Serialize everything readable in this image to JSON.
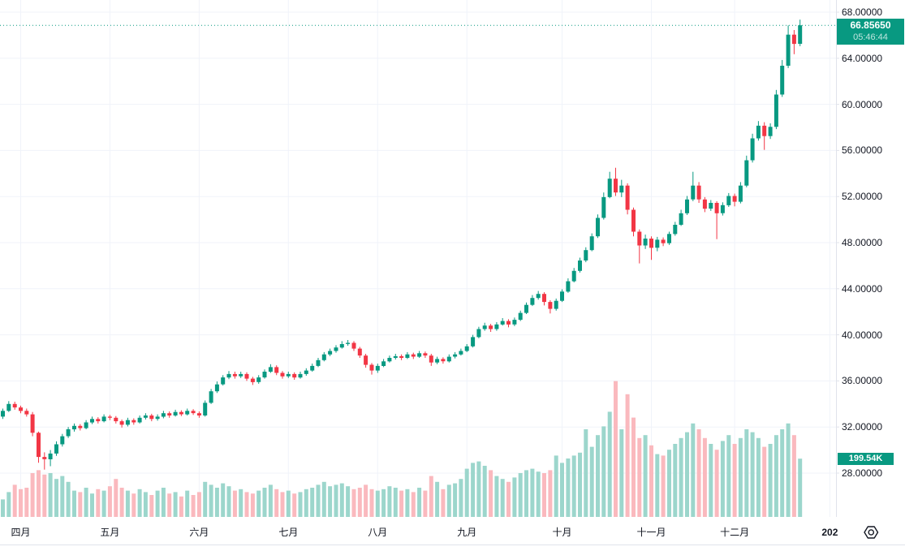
{
  "price_axis": {
    "current_price_label": "66.85650",
    "countdown": "05:46:44",
    "volume_label": "199.54K"
  },
  "colors": {
    "up": "#089981",
    "down": "#f23645",
    "volume_up": "#9cd6cc",
    "volume_down": "#fab9be",
    "grid": "#f0f3fa",
    "separator": "#e0e3eb",
    "axis_text": "#131722",
    "badge_background": "#089981",
    "badge_text": "#ffffff",
    "current_price_line": "#089981"
  },
  "chart_data": {
    "type": "candlestick",
    "current_price": 66.8565,
    "y_axis": {
      "min": 28,
      "max": 68,
      "step": 4,
      "tick_labels": [
        "68.00000",
        "64.00000",
        "60.00000",
        "56.00000",
        "52.00000",
        "48.00000",
        "44.00000",
        "40.00000",
        "36.00000",
        "32.00000",
        "28.00000"
      ]
    },
    "x_axis": {
      "tick_labels": [
        {
          "label": "四月",
          "index": 3
        },
        {
          "label": "五月",
          "index": 18
        },
        {
          "label": "六月",
          "index": 33
        },
        {
          "label": "七月",
          "index": 48
        },
        {
          "label": "八月",
          "index": 63
        },
        {
          "label": "九月",
          "index": 78
        },
        {
          "label": "十月",
          "index": 94
        },
        {
          "label": "十一月",
          "index": 109
        },
        {
          "label": "十二月",
          "index": 123
        }
      ],
      "year_tick": {
        "label": "202",
        "index": 139,
        "bold": true
      }
    },
    "volume": {
      "last_label": "199.54K",
      "last_value_k": 199.54
    },
    "candles_format": [
      "open",
      "high",
      "low",
      "close",
      "volume_k"
    ],
    "candles": [
      [
        32.9,
        33.6,
        32.7,
        33.4,
        60
      ],
      [
        33.4,
        34.25,
        33.3,
        34.0,
        85
      ],
      [
        34.0,
        34.2,
        33.5,
        33.7,
        110
      ],
      [
        33.7,
        33.85,
        33.2,
        33.4,
        95
      ],
      [
        33.4,
        33.6,
        32.9,
        33.1,
        100
      ],
      [
        33.1,
        33.3,
        31.2,
        31.5,
        150
      ],
      [
        31.5,
        31.6,
        28.9,
        29.4,
        160
      ],
      [
        29.4,
        29.8,
        28.3,
        29.2,
        145
      ],
      [
        29.2,
        30.0,
        28.6,
        29.7,
        150
      ],
      [
        29.7,
        30.75,
        29.5,
        30.5,
        130
      ],
      [
        30.5,
        31.4,
        30.3,
        31.2,
        140
      ],
      [
        31.2,
        32.0,
        31.05,
        31.8,
        120
      ],
      [
        31.8,
        32.3,
        31.6,
        32.1,
        90
      ],
      [
        32.1,
        32.25,
        31.7,
        31.9,
        85
      ],
      [
        31.9,
        32.6,
        31.8,
        32.4,
        100
      ],
      [
        32.4,
        32.9,
        32.25,
        32.7,
        80
      ],
      [
        32.7,
        32.85,
        32.3,
        32.5,
        95
      ],
      [
        32.5,
        33.1,
        32.4,
        32.9,
        90
      ],
      [
        32.9,
        33.05,
        32.6,
        32.8,
        105
      ],
      [
        32.8,
        32.95,
        32.3,
        32.5,
        130
      ],
      [
        32.5,
        32.65,
        31.95,
        32.2,
        100
      ],
      [
        32.2,
        32.8,
        32.05,
        32.6,
        90
      ],
      [
        32.6,
        32.75,
        32.2,
        32.4,
        80
      ],
      [
        32.4,
        33.0,
        32.3,
        32.8,
        95
      ],
      [
        32.8,
        33.2,
        32.65,
        33.0,
        85
      ],
      [
        33.0,
        33.15,
        32.5,
        32.7,
        75
      ],
      [
        32.7,
        33.1,
        32.55,
        32.9,
        90
      ],
      [
        32.9,
        33.4,
        32.75,
        33.2,
        100
      ],
      [
        33.2,
        33.35,
        32.8,
        33.0,
        80
      ],
      [
        33.0,
        33.5,
        32.9,
        33.3,
        85
      ],
      [
        33.3,
        33.45,
        32.95,
        33.1,
        70
      ],
      [
        33.1,
        33.6,
        33.0,
        33.4,
        90
      ],
      [
        33.4,
        33.55,
        33.05,
        33.2,
        75
      ],
      [
        33.2,
        33.35,
        32.8,
        33.0,
        85
      ],
      [
        33.0,
        34.3,
        32.9,
        34.1,
        120
      ],
      [
        34.1,
        35.3,
        34.0,
        35.1,
        110
      ],
      [
        35.1,
        35.95,
        34.95,
        35.7,
        100
      ],
      [
        35.7,
        36.5,
        35.6,
        36.3,
        115
      ],
      [
        36.3,
        36.85,
        36.15,
        36.6,
        105
      ],
      [
        36.6,
        36.8,
        36.2,
        36.4,
        90
      ],
      [
        36.4,
        36.8,
        36.25,
        36.6,
        95
      ],
      [
        36.6,
        36.75,
        36.0,
        36.2,
        85
      ],
      [
        36.2,
        36.35,
        35.65,
        35.9,
        80
      ],
      [
        35.9,
        36.5,
        35.75,
        36.3,
        90
      ],
      [
        36.3,
        37.0,
        36.2,
        36.8,
        100
      ],
      [
        36.8,
        37.45,
        36.7,
        37.2,
        110
      ],
      [
        37.2,
        37.35,
        36.5,
        36.7,
        95
      ],
      [
        36.7,
        36.85,
        36.2,
        36.4,
        85
      ],
      [
        36.4,
        36.8,
        36.25,
        36.6,
        90
      ],
      [
        36.6,
        36.75,
        36.1,
        36.3,
        80
      ],
      [
        36.3,
        36.8,
        36.2,
        36.6,
        85
      ],
      [
        36.6,
        37.1,
        36.45,
        36.9,
        95
      ],
      [
        36.9,
        37.5,
        36.8,
        37.3,
        100
      ],
      [
        37.3,
        38.0,
        37.2,
        37.8,
        110
      ],
      [
        37.8,
        38.5,
        37.7,
        38.3,
        120
      ],
      [
        38.3,
        38.8,
        38.15,
        38.6,
        105
      ],
      [
        38.6,
        39.1,
        38.45,
        38.9,
        110
      ],
      [
        38.9,
        39.45,
        38.8,
        39.2,
        115
      ],
      [
        39.2,
        39.55,
        39.05,
        39.3,
        105
      ],
      [
        39.3,
        39.45,
        38.6,
        38.8,
        95
      ],
      [
        38.8,
        38.95,
        38.0,
        38.2,
        100
      ],
      [
        38.2,
        38.35,
        37.15,
        37.4,
        110
      ],
      [
        37.4,
        37.55,
        36.55,
        36.9,
        95
      ],
      [
        36.9,
        37.5,
        36.7,
        37.3,
        90
      ],
      [
        37.3,
        37.9,
        37.2,
        37.7,
        95
      ],
      [
        37.7,
        38.2,
        37.6,
        38.0,
        105
      ],
      [
        38.0,
        38.35,
        37.85,
        38.15,
        100
      ],
      [
        38.15,
        38.3,
        37.8,
        38.0,
        90
      ],
      [
        38.0,
        38.5,
        37.9,
        38.3,
        95
      ],
      [
        38.3,
        38.45,
        37.9,
        38.1,
        85
      ],
      [
        38.1,
        38.6,
        38.0,
        38.4,
        100
      ],
      [
        38.4,
        38.55,
        38.0,
        38.2,
        90
      ],
      [
        38.2,
        38.35,
        37.3,
        37.6,
        140
      ],
      [
        37.6,
        38.1,
        37.45,
        37.9,
        120
      ],
      [
        37.9,
        38.05,
        37.5,
        37.7,
        95
      ],
      [
        37.7,
        38.3,
        37.6,
        38.1,
        110
      ],
      [
        38.1,
        38.5,
        37.95,
        38.3,
        115
      ],
      [
        38.3,
        38.8,
        38.2,
        38.6,
        130
      ],
      [
        38.6,
        39.2,
        38.5,
        39.0,
        165
      ],
      [
        39.0,
        40.0,
        38.9,
        39.8,
        185
      ],
      [
        39.8,
        40.7,
        39.7,
        40.5,
        190
      ],
      [
        40.5,
        41.05,
        40.35,
        40.8,
        175
      ],
      [
        40.8,
        40.95,
        40.25,
        40.5,
        160
      ],
      [
        40.5,
        41.1,
        40.35,
        40.9,
        140
      ],
      [
        40.9,
        41.45,
        40.8,
        41.2,
        130
      ],
      [
        41.2,
        41.35,
        40.65,
        40.9,
        120
      ],
      [
        40.9,
        41.5,
        40.75,
        41.3,
        135
      ],
      [
        41.3,
        42.1,
        41.2,
        41.9,
        150
      ],
      [
        41.9,
        42.8,
        41.8,
        42.6,
        160
      ],
      [
        42.6,
        43.45,
        42.5,
        43.2,
        165
      ],
      [
        43.2,
        43.8,
        43.05,
        43.55,
        155
      ],
      [
        43.55,
        43.7,
        42.55,
        42.85,
        150
      ],
      [
        42.85,
        43.0,
        41.85,
        42.25,
        160
      ],
      [
        42.25,
        43.15,
        42.1,
        42.95,
        210
      ],
      [
        42.95,
        43.95,
        42.85,
        43.75,
        185
      ],
      [
        43.75,
        44.9,
        43.65,
        44.65,
        200
      ],
      [
        44.65,
        45.8,
        44.55,
        45.55,
        210
      ],
      [
        45.55,
        46.7,
        45.4,
        46.45,
        220
      ],
      [
        46.45,
        47.6,
        46.3,
        47.35,
        300
      ],
      [
        47.35,
        48.8,
        47.25,
        48.55,
        240
      ],
      [
        48.55,
        50.45,
        48.4,
        50.15,
        280
      ],
      [
        50.15,
        52.35,
        50.0,
        51.95,
        310
      ],
      [
        51.95,
        54.15,
        51.85,
        53.55,
        360
      ],
      [
        53.55,
        54.5,
        52.05,
        52.35,
        465
      ],
      [
        52.35,
        53.45,
        51.95,
        52.95,
        300
      ],
      [
        52.95,
        53.15,
        50.45,
        50.85,
        420
      ],
      [
        50.85,
        51.05,
        48.55,
        48.95,
        340
      ],
      [
        48.95,
        49.15,
        46.2,
        47.75,
        270
      ],
      [
        47.75,
        48.7,
        47.45,
        48.35,
        280
      ],
      [
        48.35,
        48.55,
        46.5,
        47.55,
        245
      ],
      [
        47.55,
        48.5,
        47.25,
        48.25,
        215
      ],
      [
        48.25,
        48.45,
        47.7,
        47.95,
        210
      ],
      [
        47.95,
        48.95,
        47.8,
        48.75,
        230
      ],
      [
        48.75,
        49.8,
        48.6,
        49.55,
        250
      ],
      [
        49.55,
        50.85,
        49.45,
        50.55,
        270
      ],
      [
        50.55,
        52.05,
        50.4,
        51.75,
        290
      ],
      [
        51.75,
        54.15,
        51.6,
        52.95,
        320
      ],
      [
        52.95,
        53.25,
        51.45,
        51.75,
        300
      ],
      [
        51.75,
        51.95,
        50.65,
        50.95,
        270
      ],
      [
        50.95,
        51.7,
        50.75,
        51.45,
        250
      ],
      [
        51.45,
        51.6,
        48.3,
        50.55,
        230
      ],
      [
        50.55,
        51.5,
        50.35,
        51.25,
        260
      ],
      [
        51.25,
        52.3,
        51.1,
        52.05,
        280
      ],
      [
        52.05,
        52.25,
        51.15,
        51.55,
        250
      ],
      [
        51.55,
        53.25,
        51.4,
        52.95,
        270
      ],
      [
        52.95,
        55.55,
        52.8,
        55.15,
        300
      ],
      [
        55.15,
        57.45,
        54.95,
        57.05,
        290
      ],
      [
        57.05,
        58.55,
        56.85,
        58.15,
        270
      ],
      [
        58.15,
        58.45,
        56.05,
        57.25,
        240
      ],
      [
        57.25,
        58.35,
        57.0,
        58.05,
        250
      ],
      [
        58.05,
        61.25,
        57.85,
        60.85,
        280
      ],
      [
        60.85,
        63.85,
        60.65,
        63.35,
        300
      ],
      [
        63.35,
        66.85,
        63.15,
        66.05,
        320
      ],
      [
        66.05,
        66.45,
        64.35,
        65.25,
        280
      ],
      [
        65.25,
        67.35,
        65.05,
        66.8565,
        199.54
      ]
    ]
  }
}
